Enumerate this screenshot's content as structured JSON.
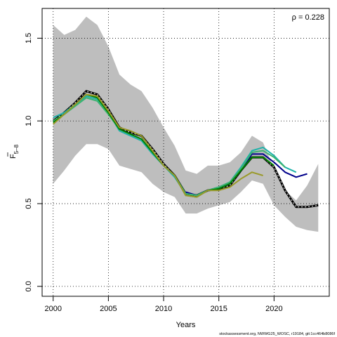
{
  "chart_data": {
    "type": "line",
    "xlabel": "Years",
    "ylabel_main": "F",
    "ylabel_sub": "5–8",
    "annotation": "ρ = 0.228",
    "footer": "stockassessment.org, NWWG25_WOSC, r19184, git:1cc464b8086f",
    "xlim": [
      1999,
      2025
    ],
    "ylim": [
      -0.06,
      1.68
    ],
    "x_ticks": [
      2000,
      2005,
      2010,
      2015,
      2020
    ],
    "x_tick_labels": [
      "2000",
      "2005",
      "2010",
      "2015",
      "2020"
    ],
    "y_ticks": [
      0.0,
      0.5,
      1.0,
      1.5
    ],
    "y_tick_labels": [
      "0.0",
      "0.5",
      "1.0",
      "1.5"
    ],
    "grid": true,
    "band": {
      "color": "#bebebe",
      "x": [
        2000,
        2001,
        2002,
        2003,
        2004,
        2005,
        2006,
        2007,
        2008,
        2009,
        2010,
        2011,
        2012,
        2013,
        2014,
        2015,
        2016,
        2017,
        2018,
        2019,
        2020,
        2021,
        2022,
        2023,
        2024
      ],
      "upper": [
        1.58,
        1.52,
        1.55,
        1.63,
        1.58,
        1.45,
        1.28,
        1.22,
        1.18,
        1.08,
        0.96,
        0.85,
        0.7,
        0.68,
        0.73,
        0.73,
        0.75,
        0.81,
        0.91,
        0.87,
        0.71,
        0.58,
        0.52,
        0.61,
        0.74
      ],
      "lower": [
        0.62,
        0.7,
        0.79,
        0.86,
        0.86,
        0.83,
        0.73,
        0.71,
        0.69,
        0.62,
        0.57,
        0.54,
        0.44,
        0.44,
        0.47,
        0.49,
        0.51,
        0.57,
        0.64,
        0.62,
        0.49,
        0.42,
        0.36,
        0.34,
        0.33
      ]
    },
    "series": [
      {
        "color": "#000000",
        "dashed": true,
        "x": [
          2000,
          2001,
          2002,
          2003,
          2004,
          2005,
          2006,
          2007,
          2008,
          2009,
          2010,
          2011,
          2012,
          2013,
          2014,
          2015,
          2016,
          2017,
          2018,
          2019,
          2020,
          2021,
          2022,
          2023,
          2024
        ],
        "values": [
          1.0,
          1.05,
          1.11,
          1.18,
          1.16,
          1.07,
          0.96,
          0.93,
          0.91,
          0.83,
          0.74,
          0.67,
          0.56,
          0.55,
          0.58,
          0.59,
          0.61,
          0.7,
          0.78,
          0.78,
          0.72,
          0.58,
          0.48,
          0.48,
          0.49
        ]
      },
      {
        "color": "#00008b",
        "x": [
          2012,
          2013,
          2014,
          2015,
          2016,
          2017,
          2018,
          2019,
          2020,
          2021,
          2022,
          2023
        ],
        "values": [
          0.57,
          0.55,
          0.58,
          0.6,
          0.62,
          0.7,
          0.8,
          0.8,
          0.75,
          0.69,
          0.66,
          0.68
        ]
      },
      {
        "color": "#20b2aa",
        "x": [
          2000,
          2001,
          2002,
          2003,
          2004,
          2005,
          2006,
          2007,
          2008,
          2009,
          2010,
          2011,
          2012,
          2013,
          2014,
          2015,
          2016,
          2017,
          2018,
          2019,
          2020,
          2021,
          2022
        ],
        "values": [
          1.02,
          1.05,
          1.1,
          1.15,
          1.13,
          1.05,
          0.94,
          0.91,
          0.88,
          0.8,
          0.73,
          0.66,
          0.56,
          0.55,
          0.58,
          0.6,
          0.63,
          0.72,
          0.82,
          0.84,
          0.79,
          0.72,
          0.69
        ]
      },
      {
        "color": "#3cb371",
        "x": [
          2000,
          2001,
          2002,
          2003,
          2004,
          2005,
          2006,
          2007,
          2008,
          2009,
          2010,
          2011,
          2012,
          2013,
          2014,
          2015,
          2016,
          2017,
          2018,
          2019,
          2020,
          2021
        ],
        "values": [
          1.0,
          1.04,
          1.09,
          1.14,
          1.12,
          1.04,
          0.95,
          0.92,
          0.89,
          0.81,
          0.73,
          0.67,
          0.56,
          0.55,
          0.58,
          0.6,
          0.63,
          0.71,
          0.81,
          0.82,
          0.78,
          0.72
        ]
      },
      {
        "color": "#008000",
        "x": [
          2000,
          2001,
          2002,
          2003,
          2004,
          2005,
          2006,
          2007,
          2008,
          2009,
          2010,
          2011,
          2012,
          2013,
          2014,
          2015,
          2016,
          2017,
          2018,
          2019,
          2020
        ],
        "values": [
          0.99,
          1.04,
          1.1,
          1.16,
          1.14,
          1.05,
          0.95,
          0.92,
          0.89,
          0.81,
          0.73,
          0.67,
          0.55,
          0.54,
          0.58,
          0.59,
          0.62,
          0.7,
          0.78,
          0.78,
          0.73
        ]
      },
      {
        "color": "#9a9a2a",
        "x": [
          2000,
          2001,
          2002,
          2003,
          2004,
          2005,
          2006,
          2007,
          2008,
          2009,
          2010,
          2011,
          2012,
          2013,
          2014,
          2015,
          2016,
          2017,
          2018,
          2019
        ],
        "values": [
          0.98,
          1.04,
          1.1,
          1.16,
          1.15,
          1.06,
          0.96,
          0.94,
          0.91,
          0.82,
          0.73,
          0.67,
          0.55,
          0.54,
          0.58,
          0.58,
          0.6,
          0.65,
          0.69,
          0.67
        ]
      }
    ]
  }
}
